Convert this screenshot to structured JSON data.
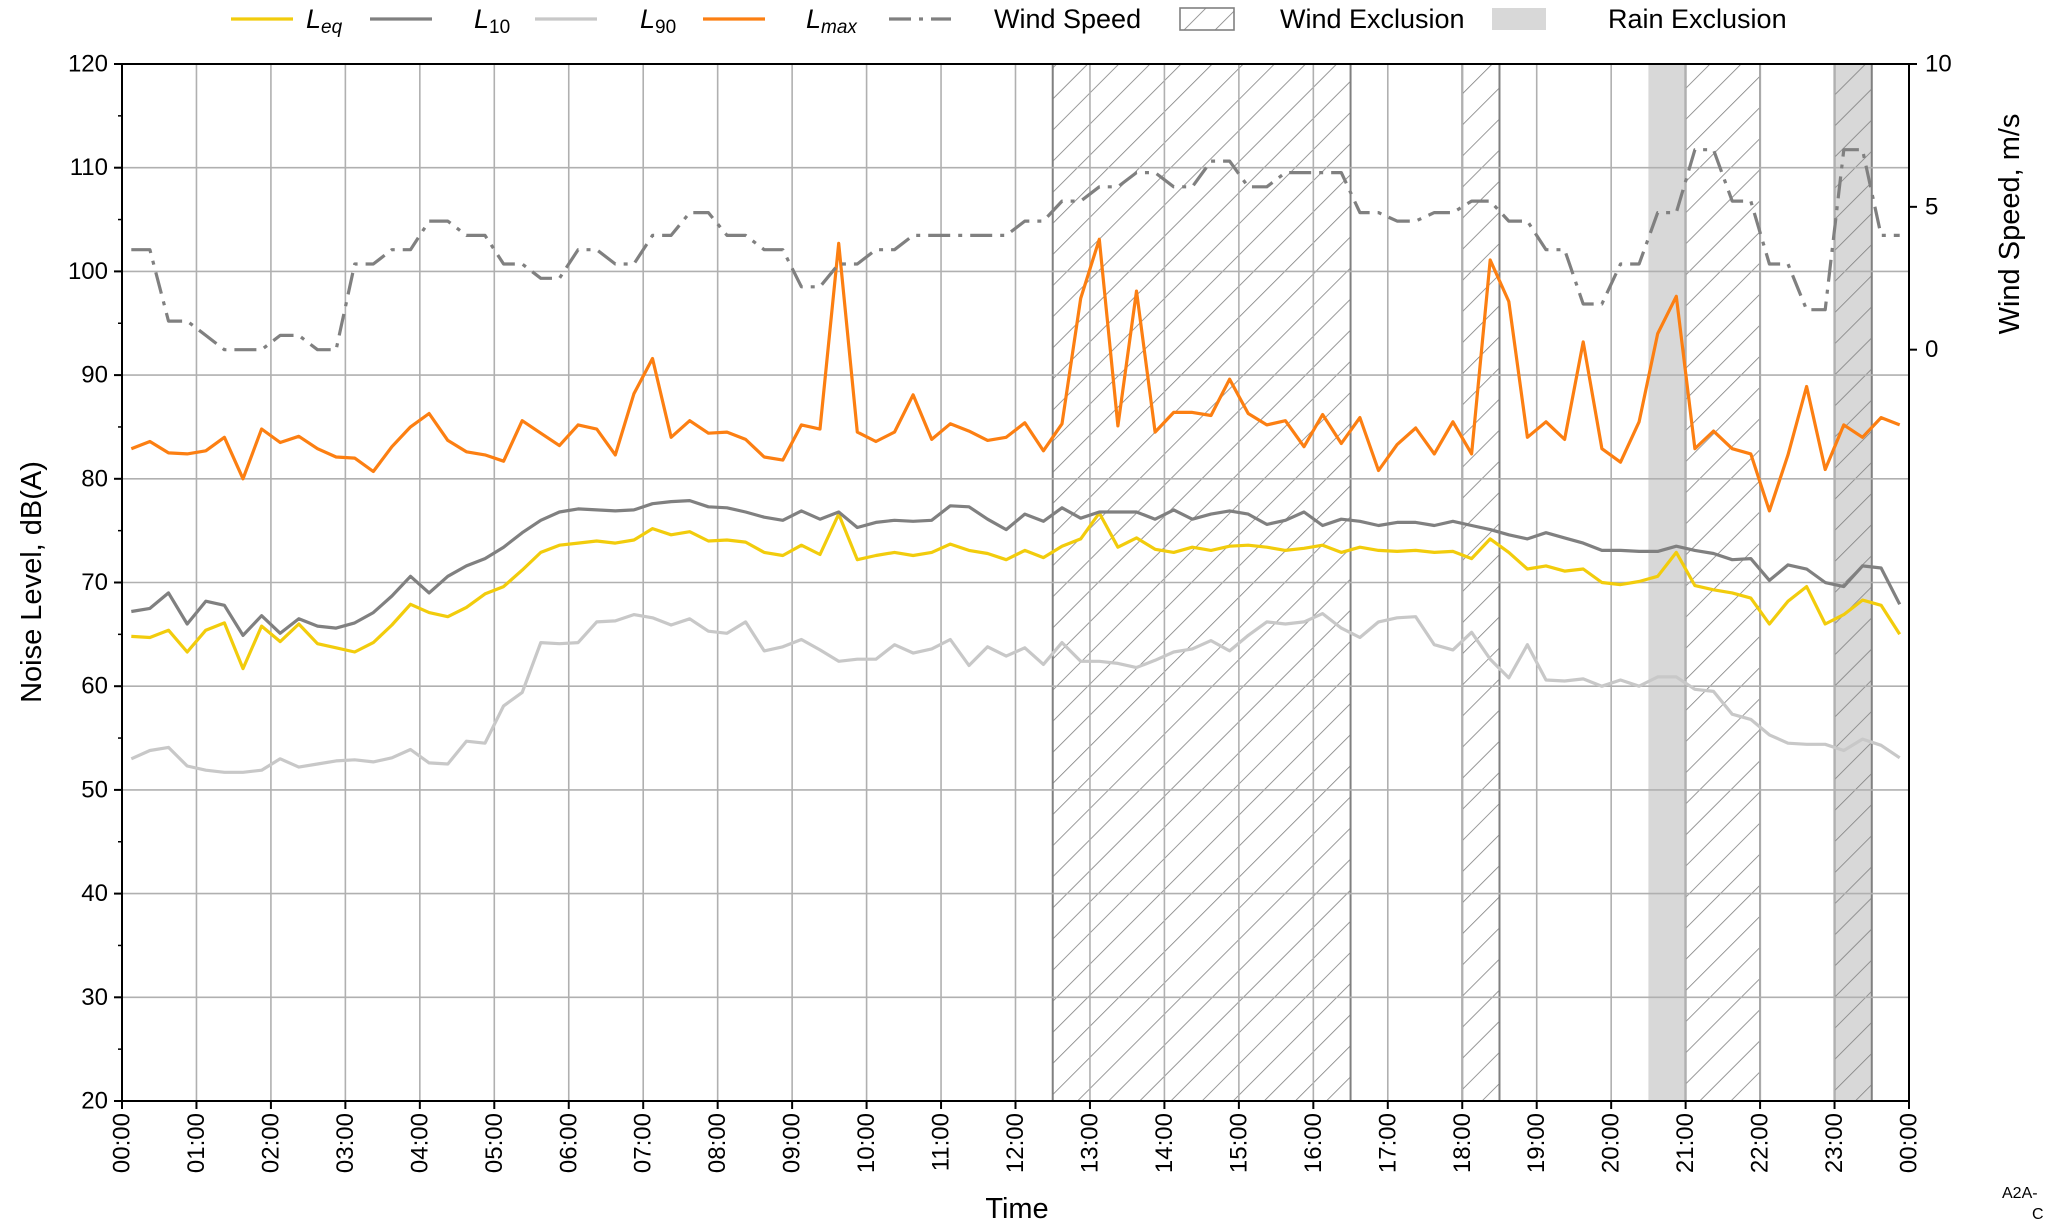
{
  "chart_data": {
    "type": "line",
    "xlabel": "Time",
    "ylabel": "Noise Level, dB(A)",
    "y2label": "Wind Speed, m/s",
    "ylim": [
      20,
      120
    ],
    "y2lim": [
      -26.3,
      10
    ],
    "y2ticks": [
      0,
      5,
      10
    ],
    "xlim": [
      "00:00",
      "24:00"
    ],
    "grid": true,
    "legend_position": "top",
    "x_tick_labels": [
      "00:00",
      "01:00",
      "02:00",
      "03:00",
      "04:00",
      "05:00",
      "06:00",
      "07:00",
      "08:00",
      "09:00",
      "10:00",
      "11:00",
      "12:00",
      "13:00",
      "14:00",
      "15:00",
      "16:00",
      "17:00",
      "18:00",
      "19:00",
      "20:00",
      "21:00",
      "22:00",
      "23:00",
      "00:00"
    ],
    "y_tick_labels": [
      "20",
      "30",
      "40",
      "50",
      "60",
      "70",
      "80",
      "90",
      "100",
      "110",
      "120"
    ],
    "legend": [
      {
        "key": "leq",
        "main": "L",
        "sub": "eq",
        "style": "line",
        "color": "#f2cc0c"
      },
      {
        "key": "l10",
        "main": "L",
        "sub": "10",
        "style": "line",
        "color": "#808080"
      },
      {
        "key": "l90",
        "main": "L",
        "sub": "90",
        "style": "line",
        "color": "#c8c8c8"
      },
      {
        "key": "lmax",
        "main": "L",
        "sub": "max",
        "style": "line",
        "color": "#fc7f12"
      },
      {
        "key": "wind",
        "label": "Wind Speed",
        "style": "dashdot",
        "color": "#808080"
      },
      {
        "key": "windex",
        "label": "Wind Exclusion",
        "style": "hatch",
        "color": "#808080"
      },
      {
        "key": "rainex",
        "label": "Rain Exclusion",
        "style": "fill",
        "color": "#d8d8d8"
      }
    ],
    "wind_exclusion": [
      [
        12.5,
        16.5
      ],
      [
        18.0,
        18.5
      ],
      [
        21.0,
        22.0
      ],
      [
        23.0,
        23.5
      ]
    ],
    "rain_exclusion": [
      [
        20.5,
        21.0
      ],
      [
        23.0,
        23.5
      ]
    ],
    "x_hours": [
      0.125,
      0.375,
      0.625,
      0.875,
      1.125,
      1.375,
      1.625,
      1.875,
      2.125,
      2.375,
      2.625,
      2.875,
      3.125,
      3.375,
      3.625,
      3.875,
      4.125,
      4.375,
      4.625,
      4.875,
      5.125,
      5.375,
      5.625,
      5.875,
      6.125,
      6.375,
      6.625,
      6.875,
      7.125,
      7.375,
      7.625,
      7.875,
      8.125,
      8.375,
      8.625,
      8.875,
      9.125,
      9.375,
      9.625,
      9.875,
      10.125,
      10.375,
      10.625,
      10.875,
      11.125,
      11.375,
      11.625,
      11.875,
      12.125,
      12.375,
      12.625,
      12.875,
      13.125,
      13.375,
      13.625,
      13.875,
      14.125,
      14.375,
      14.625,
      14.875,
      15.125,
      15.375,
      15.625,
      15.875,
      16.125,
      16.375,
      16.625,
      16.875,
      17.125,
      17.375,
      17.625,
      17.875,
      18.125,
      18.375,
      18.625,
      18.875,
      19.125,
      19.375,
      19.625,
      19.875,
      20.125,
      20.375,
      20.625,
      20.875,
      21.125,
      21.375,
      21.625,
      21.875,
      22.125,
      22.375,
      22.625,
      22.875,
      23.125,
      23.375,
      23.625,
      23.875
    ],
    "series": [
      {
        "name": "Leq",
        "color": "#f2cc0c",
        "values": [
          64.8,
          64.7,
          65.4,
          63.3,
          65.4,
          66.1,
          61.7,
          65.8,
          64.3,
          66.0,
          64.1,
          63.7,
          63.3,
          64.2,
          65.9,
          67.9,
          67.1,
          66.7,
          67.6,
          68.9,
          69.6,
          71.2,
          72.9,
          73.6,
          73.8,
          74.0,
          73.8,
          74.1,
          75.2,
          74.6,
          74.9,
          74.0,
          74.1,
          73.9,
          72.9,
          72.6,
          73.6,
          72.7,
          76.6,
          72.2,
          72.6,
          72.9,
          72.6,
          72.9,
          73.7,
          73.1,
          72.8,
          72.2,
          73.1,
          72.4,
          73.5,
          74.2,
          76.7,
          73.4,
          74.3,
          73.2,
          72.9,
          73.4,
          73.1,
          73.5,
          73.6,
          73.4,
          73.1,
          73.3,
          73.6,
          72.9,
          73.4,
          73.1,
          73.0,
          73.1,
          72.9,
          73.0,
          72.3,
          74.2,
          72.9,
          71.3,
          71.6,
          71.1,
          71.3,
          70.0,
          69.8,
          70.1,
          70.6,
          72.9,
          69.7,
          69.3,
          69.0,
          68.5,
          66.0,
          68.2,
          69.6,
          66.0,
          66.9,
          68.3,
          67.8,
          65.0
        ]
      },
      {
        "name": "L10",
        "color": "#808080",
        "values": [
          67.2,
          67.5,
          69.0,
          66.0,
          68.2,
          67.8,
          64.9,
          66.8,
          65.1,
          66.5,
          65.8,
          65.6,
          66.1,
          67.1,
          68.7,
          70.6,
          69.0,
          70.6,
          71.6,
          72.3,
          73.4,
          74.8,
          76.0,
          76.8,
          77.1,
          77.0,
          76.9,
          77.0,
          77.6,
          77.8,
          77.9,
          77.3,
          77.2,
          76.8,
          76.3,
          76.0,
          76.9,
          76.1,
          76.8,
          75.3,
          75.8,
          76.0,
          75.9,
          76.0,
          77.4,
          77.3,
          76.1,
          75.1,
          76.6,
          75.9,
          77.2,
          76.2,
          76.8,
          76.8,
          76.8,
          76.1,
          77.0,
          76.1,
          76.6,
          76.9,
          76.6,
          75.6,
          76.0,
          76.8,
          75.5,
          76.1,
          75.9,
          75.5,
          75.8,
          75.8,
          75.5,
          75.9,
          75.5,
          75.1,
          74.6,
          74.2,
          74.8,
          74.3,
          73.8,
          73.1,
          73.1,
          73.0,
          73.0,
          73.5,
          73.1,
          72.8,
          72.2,
          72.3,
          70.2,
          71.7,
          71.3,
          70.0,
          69.6,
          71.6,
          71.4,
          67.9
        ]
      },
      {
        "name": "L90",
        "color": "#c8c8c8",
        "values": [
          53.0,
          53.8,
          54.1,
          52.3,
          51.9,
          51.7,
          51.7,
          51.9,
          53.0,
          52.2,
          52.5,
          52.8,
          52.9,
          52.7,
          53.1,
          53.9,
          52.6,
          52.5,
          54.7,
          54.5,
          58.1,
          59.4,
          64.2,
          64.1,
          64.2,
          66.2,
          66.3,
          66.9,
          66.6,
          65.9,
          66.5,
          65.3,
          65.1,
          66.2,
          63.4,
          63.8,
          64.5,
          63.5,
          62.4,
          62.6,
          62.6,
          64.0,
          63.2,
          63.6,
          64.5,
          62.0,
          63.8,
          62.9,
          63.7,
          62.1,
          64.2,
          62.4,
          62.4,
          62.2,
          61.8,
          62.5,
          63.3,
          63.6,
          64.4,
          63.4,
          64.9,
          66.2,
          66.0,
          66.2,
          67.0,
          65.6,
          64.7,
          66.2,
          66.6,
          66.7,
          64.0,
          63.5,
          65.2,
          62.6,
          60.8,
          64.0,
          60.6,
          60.5,
          60.7,
          60.0,
          60.6,
          60.0,
          60.9,
          60.9,
          59.7,
          59.5,
          57.3,
          56.8,
          55.3,
          54.5,
          54.4,
          54.4,
          53.8,
          54.9,
          54.3,
          53.1
        ]
      },
      {
        "name": "Lmax",
        "color": "#fc7f12",
        "values": [
          82.9,
          83.6,
          82.5,
          82.4,
          82.7,
          84.0,
          80.0,
          84.8,
          83.5,
          84.1,
          82.9,
          82.1,
          82.0,
          80.7,
          83.1,
          85.0,
          86.3,
          83.7,
          82.6,
          82.3,
          81.7,
          85.6,
          84.4,
          83.2,
          85.2,
          84.8,
          82.3,
          88.2,
          91.6,
          84.0,
          85.6,
          84.4,
          84.5,
          83.8,
          82.1,
          81.8,
          85.2,
          84.8,
          102.7,
          84.5,
          83.6,
          84.5,
          88.1,
          83.8,
          85.3,
          84.6,
          83.7,
          84.0,
          85.4,
          82.7,
          85.3,
          97.4,
          103.1,
          85.1,
          98.1,
          84.5,
          86.4,
          86.4,
          86.1,
          89.6,
          86.3,
          85.2,
          85.6,
          83.1,
          86.2,
          83.4,
          85.9,
          80.8,
          83.3,
          84.9,
          82.4,
          85.5,
          82.4,
          101.1,
          97.1,
          84.0,
          85.5,
          83.8,
          93.2,
          82.9,
          81.6,
          85.5,
          94.0,
          97.6,
          82.9,
          84.6,
          82.9,
          82.4,
          76.9,
          82.3,
          88.9,
          80.9,
          85.2,
          84.0,
          85.9,
          85.2
        ]
      },
      {
        "name": "Wind Speed",
        "color": "#808080",
        "style": "dashdot",
        "values": [
          3.5,
          3.5,
          1.0,
          1.0,
          0.5,
          0.0,
          0.0,
          0.0,
          0.5,
          0.5,
          0.0,
          0.0,
          3.0,
          3.0,
          3.5,
          3.5,
          4.5,
          4.5,
          4.0,
          4.0,
          3.0,
          3.0,
          2.5,
          2.5,
          3.5,
          3.5,
          3.0,
          3.0,
          4.0,
          4.0,
          4.8,
          4.8,
          4.0,
          4.0,
          3.5,
          3.5,
          2.2,
          2.2,
          3.0,
          3.0,
          3.5,
          3.5,
          4.0,
          4.0,
          4.0,
          4.0,
          4.0,
          4.0,
          4.5,
          4.5,
          5.2,
          5.2,
          5.7,
          5.7,
          6.2,
          6.2,
          5.7,
          5.7,
          6.6,
          6.6,
          5.7,
          5.7,
          6.2,
          6.2,
          6.2,
          6.2,
          4.8,
          4.8,
          4.5,
          4.5,
          4.8,
          4.8,
          5.2,
          5.2,
          4.5,
          4.5,
          3.5,
          3.5,
          1.6,
          1.6,
          3.0,
          3.0,
          4.8,
          4.8,
          7.0,
          7.0,
          5.2,
          5.2,
          3.0,
          3.0,
          1.4,
          1.4,
          7.0,
          7.0,
          4.0,
          4.0
        ]
      }
    ]
  },
  "corner_note": {
    "line1": "A2A-",
    "line2": "C"
  }
}
